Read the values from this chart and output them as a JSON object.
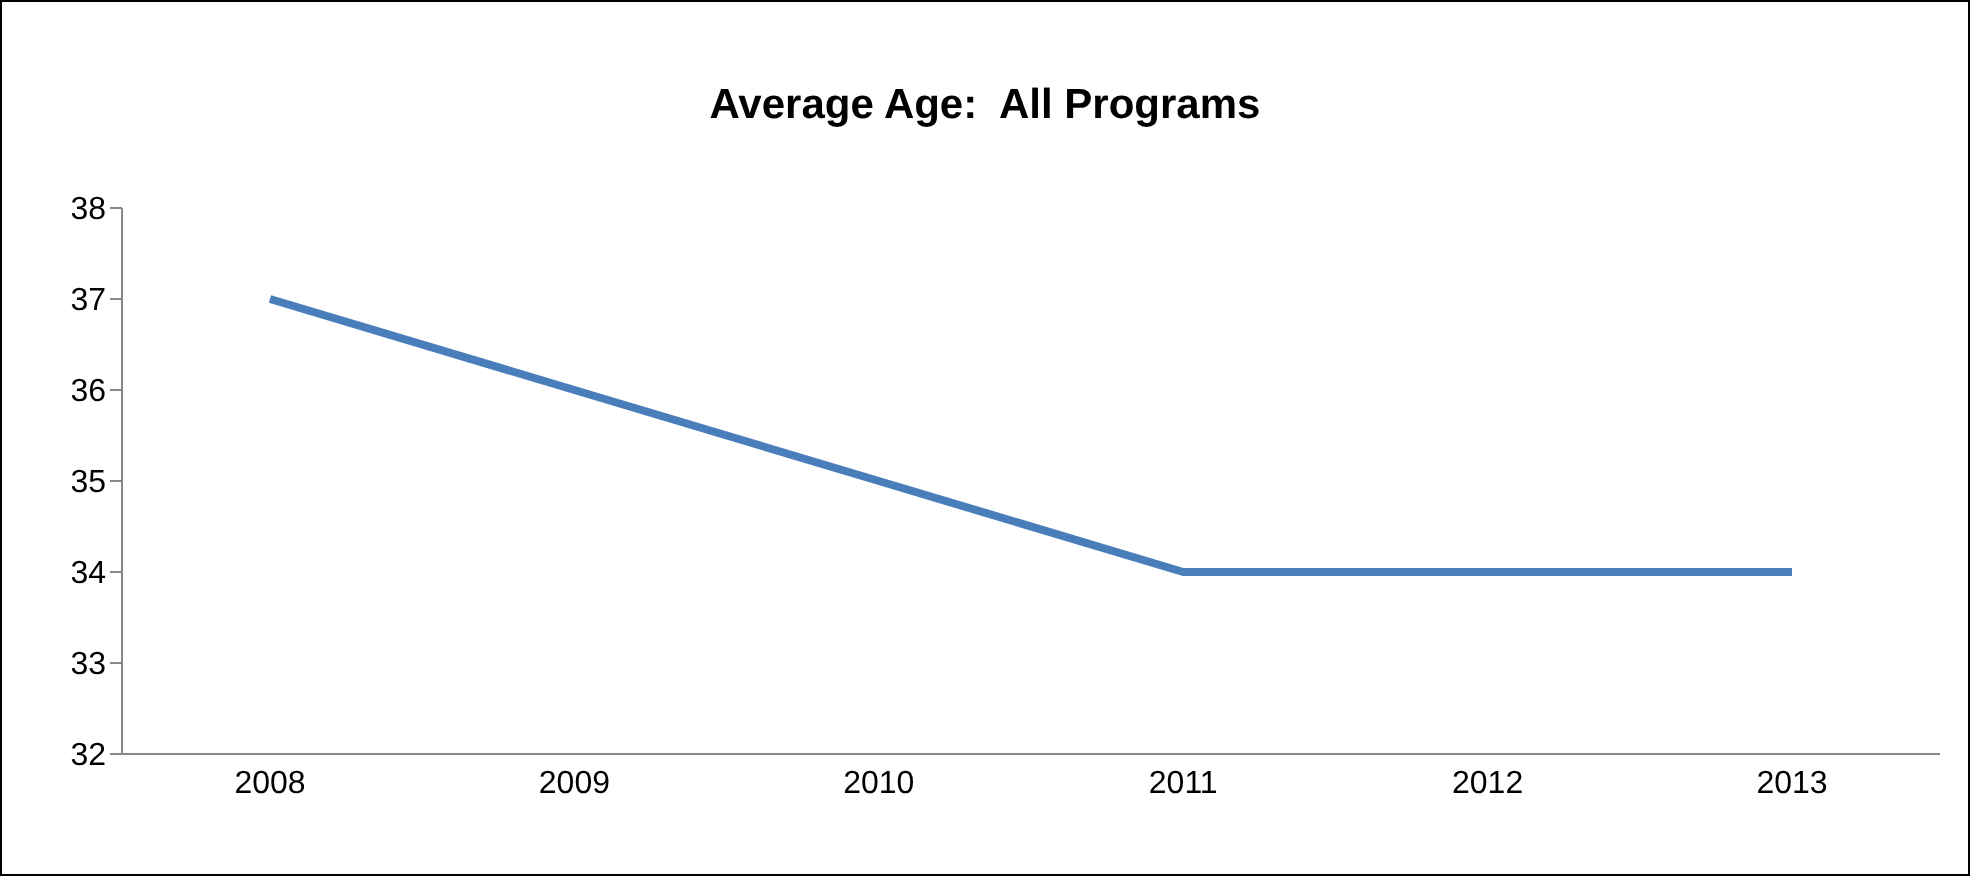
{
  "chart_data": {
    "type": "line",
    "title": "Average Age:  All Programs",
    "categories": [
      "2008",
      "2009",
      "2010",
      "2011",
      "2012",
      "2013"
    ],
    "series": [
      {
        "color": "#4a7ebb",
        "values": [
          37,
          36,
          35,
          34,
          34,
          34
        ]
      }
    ],
    "ylim": [
      32,
      38
    ],
    "yticks": [
      32,
      33,
      34,
      35,
      36,
      37,
      38
    ],
    "grid": false,
    "legend": false,
    "marker": "none",
    "line_style": "solid"
  }
}
